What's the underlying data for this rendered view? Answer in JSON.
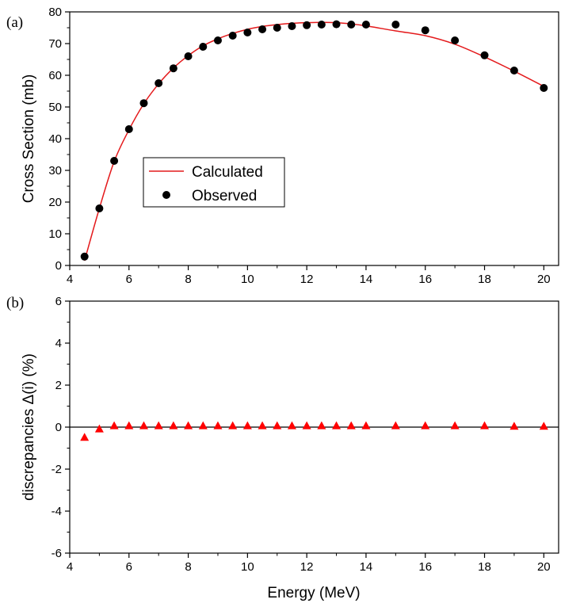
{
  "chart_data": [
    {
      "type": "line+scatter",
      "panel_label": "(a)",
      "xlabel": "",
      "ylabel": "Cross Section (mb)",
      "xlim": [
        4,
        20.5
      ],
      "ylim": [
        0,
        80
      ],
      "x_ticks": [
        4,
        6,
        8,
        10,
        12,
        14,
        16,
        18,
        20
      ],
      "y_ticks": [
        0,
        10,
        20,
        30,
        40,
        50,
        60,
        70,
        80
      ],
      "legend": {
        "placement": "center-left",
        "entries": [
          {
            "label": "Calculated",
            "style": "line",
            "color": "#e41a1c"
          },
          {
            "label": "Observed",
            "style": "circle",
            "color": "#000000"
          }
        ]
      },
      "series": [
        {
          "name": "Calculated",
          "style": "line",
          "color": "#e41a1c",
          "x": [
            4.5,
            5.0,
            5.5,
            6.0,
            6.5,
            7.0,
            7.5,
            8.0,
            8.5,
            9.0,
            9.5,
            10.0,
            10.5,
            11.0,
            11.5,
            12.0,
            12.5,
            13.0,
            13.5,
            14.0,
            15.0,
            16.0,
            17.0,
            18.0,
            19.0,
            20.0
          ],
          "y": [
            1.5,
            18.0,
            32.8,
            42.8,
            51.0,
            57.3,
            62.3,
            66.2,
            69.3,
            71.5,
            73.2,
            74.5,
            75.4,
            76.0,
            76.4,
            76.6,
            76.7,
            76.6,
            76.2,
            75.6,
            74.0,
            72.5,
            69.8,
            65.8,
            61.3,
            56.5
          ]
        },
        {
          "name": "Observed",
          "style": "circle",
          "color": "#000000",
          "x": [
            4.5,
            5.0,
            5.5,
            6.0,
            6.5,
            7.0,
            7.5,
            8.0,
            8.5,
            9.0,
            9.5,
            10.0,
            10.5,
            11.0,
            11.5,
            12.0,
            12.5,
            13.0,
            13.5,
            14.0,
            15.0,
            16.0,
            17.0,
            18.0,
            19.0,
            20.0
          ],
          "y": [
            2.8,
            18.0,
            33.0,
            43.0,
            51.2,
            57.5,
            62.2,
            66.0,
            69.0,
            71.0,
            72.5,
            73.5,
            74.5,
            75.0,
            75.5,
            75.8,
            76.0,
            76.1,
            76.0,
            76.0,
            76.0,
            74.2,
            71.0,
            66.3,
            61.5,
            56.0
          ]
        }
      ]
    },
    {
      "type": "scatter",
      "panel_label": "(b)",
      "xlabel": "Energy (MeV)",
      "ylabel": "discrepancies Δ(i) (%)",
      "xlim": [
        4,
        20.5
      ],
      "ylim": [
        -6,
        6
      ],
      "x_ticks": [
        4,
        6,
        8,
        10,
        12,
        14,
        16,
        18,
        20
      ],
      "y_ticks": [
        -6,
        -4,
        -2,
        0,
        2,
        4,
        6
      ],
      "zero_line": true,
      "series": [
        {
          "style": "triangle",
          "color": "#ff0000",
          "x": [
            4.5,
            5.0,
            5.5,
            6.0,
            6.5,
            7.0,
            7.5,
            8.0,
            8.5,
            9.0,
            9.5,
            10.0,
            10.5,
            11.0,
            11.5,
            12.0,
            12.5,
            13.0,
            13.5,
            14.0,
            15.0,
            16.0,
            17.0,
            18.0,
            19.0,
            20.0
          ],
          "y": [
            -0.5,
            -0.1,
            0.05,
            0.05,
            0.05,
            0.05,
            0.05,
            0.05,
            0.05,
            0.05,
            0.05,
            0.05,
            0.05,
            0.05,
            0.05,
            0.05,
            0.05,
            0.05,
            0.05,
            0.05,
            0.05,
            0.05,
            0.05,
            0.05,
            0.03,
            0.03
          ]
        }
      ]
    }
  ]
}
